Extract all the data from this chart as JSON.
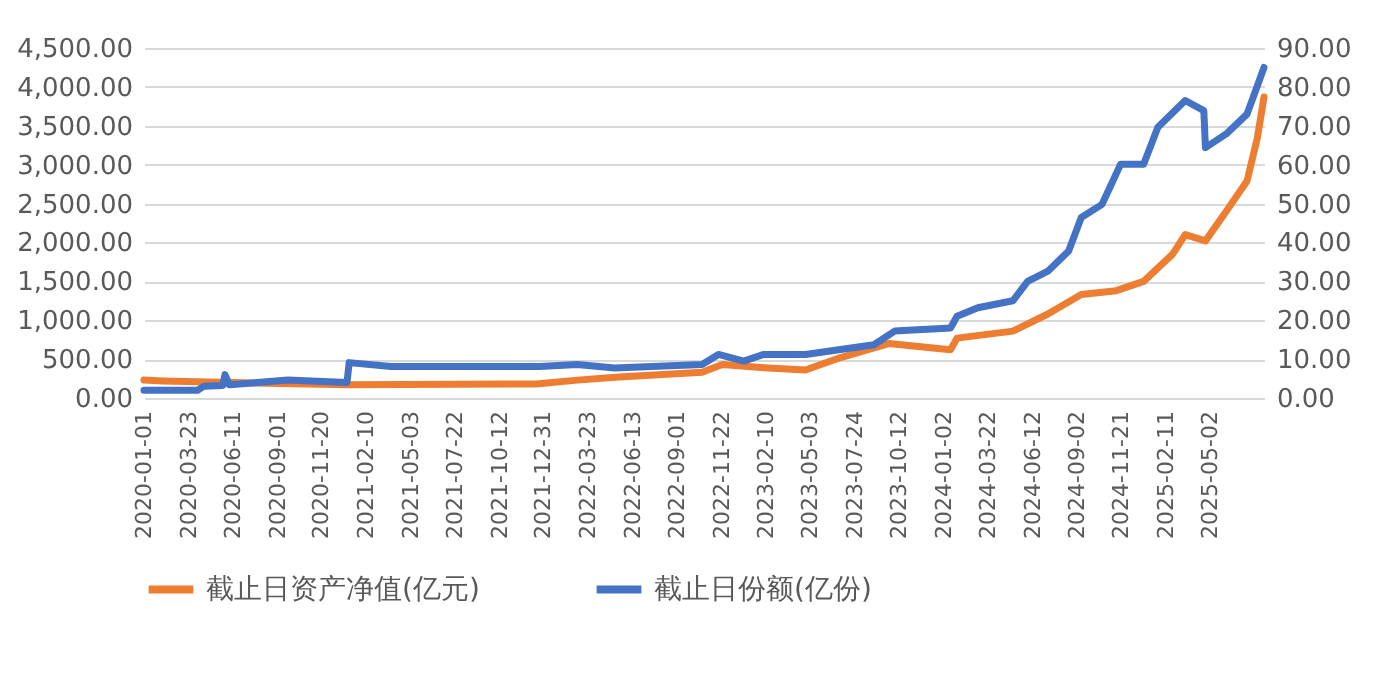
{
  "chart_data": {
    "type": "line",
    "legend": "bottom",
    "grid": "y",
    "line_style": "solid",
    "marker": "none",
    "xlim": [
      "2020-01-01",
      "2025-08-09"
    ],
    "xticks": [
      "2020-01-01",
      "2020-03-23",
      "2020-06-11",
      "2020-09-01",
      "2020-11-20",
      "2021-02-10",
      "2021-05-03",
      "2021-07-22",
      "2021-10-12",
      "2021-12-31",
      "2022-03-23",
      "2022-06-13",
      "2022-09-01",
      "2022-11-22",
      "2023-02-10",
      "2023-05-03",
      "2023-07-24",
      "2023-10-12",
      "2024-01-02",
      "2024-03-22",
      "2024-06-12",
      "2024-09-02",
      "2024-11-21",
      "2025-02-11",
      "2025-05-02"
    ],
    "ylim": [
      0,
      4500
    ],
    "yticks": [
      {
        "value": 0,
        "label": "0.00"
      },
      {
        "value": 500,
        "label": "500.00"
      },
      {
        "value": 1000,
        "label": "1,000.00"
      },
      {
        "value": 1500,
        "label": "1,500.00"
      },
      {
        "value": 2000,
        "label": "2,000.00"
      },
      {
        "value": 2500,
        "label": "2,500.00"
      },
      {
        "value": 3000,
        "label": "3,000.00"
      },
      {
        "value": 3500,
        "label": "3,500.00"
      },
      {
        "value": 4000,
        "label": "4,000.00"
      },
      {
        "value": 4500,
        "label": "4,500.00"
      }
    ],
    "y2lim": [
      0,
      90
    ],
    "y2ticks": [
      {
        "value": 0,
        "label": "0.00"
      },
      {
        "value": 10,
        "label": "10.00"
      },
      {
        "value": 20,
        "label": "20.00"
      },
      {
        "value": 30,
        "label": "30.00"
      },
      {
        "value": 40,
        "label": "40.00"
      },
      {
        "value": 50,
        "label": "50.00"
      },
      {
        "value": 60,
        "label": "60.00"
      },
      {
        "value": 70,
        "label": "70.00"
      },
      {
        "value": 80,
        "label": "80.00"
      },
      {
        "value": 90,
        "label": "90.00"
      }
    ],
    "series": [
      {
        "name": "截止日资产净值(亿元)",
        "color": "#ed7d31",
        "x": [
          "2020-01-01",
          "2020-02-04",
          "2020-08-12",
          "2021-01-10",
          "2021-12-18",
          "2022-03-03",
          "2022-05-18",
          "2022-10-17",
          "2022-11-23",
          "2023-02-07",
          "2023-04-24",
          "2023-06-27",
          "2023-09-23",
          "2024-01-14",
          "2024-01-26",
          "2024-05-07",
          "2024-07-10",
          "2024-09-09",
          "2024-11-12",
          "2025-01-01",
          "2025-02-23",
          "2025-03-18",
          "2025-04-24",
          "2025-06-01",
          "2025-07-09",
          "2025-07-28",
          "2025-08-09"
        ],
        "values": [
          230,
          220,
          190,
          170,
          180,
          230,
          270,
          330,
          430,
          390,
          360,
          520,
          700,
          620,
          770,
          860,
          1080,
          1330,
          1380,
          1500,
          1850,
          2100,
          2020,
          2400,
          2790,
          3350,
          3870
        ]
      },
      {
        "name": "截止日份额(亿份)",
        "color": "#4472c4",
        "axis": "y2",
        "x": [
          "2020-01-01",
          "2020-04-08",
          "2020-04-19",
          "2020-05-24",
          "2020-05-28",
          "2020-06-05",
          "2020-09-20",
          "2021-01-06",
          "2021-01-10",
          "2021-03-27",
          "2021-12-24",
          "2022-03-03",
          "2022-05-10",
          "2022-10-17",
          "2022-11-16",
          "2023-01-01",
          "2023-02-07",
          "2023-04-24",
          "2023-08-27",
          "2023-10-04",
          "2024-01-14",
          "2024-01-26",
          "2024-03-04",
          "2024-05-07",
          "2024-06-03",
          "2024-07-10",
          "2024-08-17",
          "2024-09-09",
          "2024-10-17",
          "2024-11-20",
          "2025-01-01",
          "2025-01-27",
          "2025-03-18",
          "2025-04-21",
          "2025-04-24",
          "2025-06-01",
          "2025-07-09",
          "2025-08-09"
        ],
        "values": [
          2.0,
          2.0,
          3.0,
          3.2,
          6.0,
          3.4,
          4.6,
          4.0,
          9.1,
          8.1,
          8.1,
          8.6,
          7.7,
          8.6,
          11.2,
          9.5,
          11.2,
          11.2,
          13.7,
          17.2,
          18,
          21,
          23.2,
          25,
          30,
          32.6,
          37.8,
          46.4,
          49.8,
          60.1,
          60.1,
          69.6,
          76.5,
          73.9,
          64.4,
          67.9,
          73,
          85
        ]
      }
    ]
  }
}
